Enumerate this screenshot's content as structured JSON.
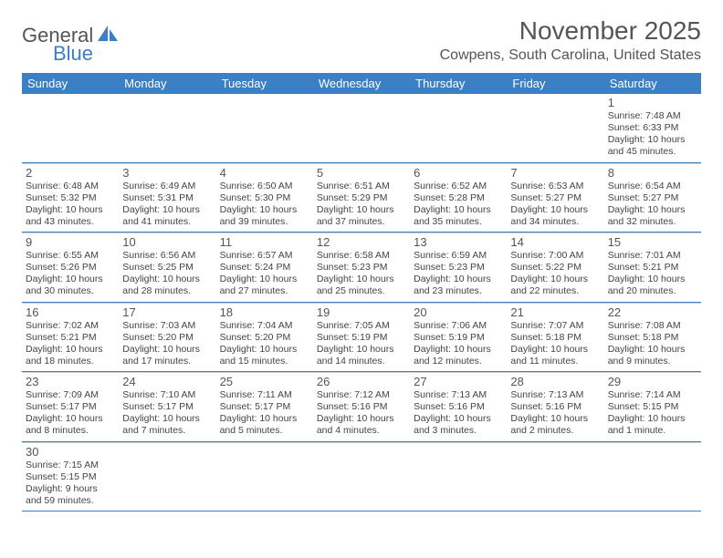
{
  "logo": {
    "text1": "General",
    "text2": "Blue",
    "color1": "#555555",
    "color2": "#3b7fc4"
  },
  "title": "November 2025",
  "location": "Cowpens, South Carolina, United States",
  "header_bg": "#3b7fc4",
  "header_text_color": "#ffffff",
  "grid_line_color": "#3b7fc4",
  "cell_divider_color": "#d0d0d0",
  "day_names": [
    "Sunday",
    "Monday",
    "Tuesday",
    "Wednesday",
    "Thursday",
    "Friday",
    "Saturday"
  ],
  "weeks": [
    [
      null,
      null,
      null,
      null,
      null,
      null,
      {
        "n": "1",
        "sr": "Sunrise: 7:48 AM",
        "ss": "Sunset: 6:33 PM",
        "d1": "Daylight: 10 hours",
        "d2": "and 45 minutes."
      }
    ],
    [
      {
        "n": "2",
        "sr": "Sunrise: 6:48 AM",
        "ss": "Sunset: 5:32 PM",
        "d1": "Daylight: 10 hours",
        "d2": "and 43 minutes."
      },
      {
        "n": "3",
        "sr": "Sunrise: 6:49 AM",
        "ss": "Sunset: 5:31 PM",
        "d1": "Daylight: 10 hours",
        "d2": "and 41 minutes."
      },
      {
        "n": "4",
        "sr": "Sunrise: 6:50 AM",
        "ss": "Sunset: 5:30 PM",
        "d1": "Daylight: 10 hours",
        "d2": "and 39 minutes."
      },
      {
        "n": "5",
        "sr": "Sunrise: 6:51 AM",
        "ss": "Sunset: 5:29 PM",
        "d1": "Daylight: 10 hours",
        "d2": "and 37 minutes."
      },
      {
        "n": "6",
        "sr": "Sunrise: 6:52 AM",
        "ss": "Sunset: 5:28 PM",
        "d1": "Daylight: 10 hours",
        "d2": "and 35 minutes."
      },
      {
        "n": "7",
        "sr": "Sunrise: 6:53 AM",
        "ss": "Sunset: 5:27 PM",
        "d1": "Daylight: 10 hours",
        "d2": "and 34 minutes."
      },
      {
        "n": "8",
        "sr": "Sunrise: 6:54 AM",
        "ss": "Sunset: 5:27 PM",
        "d1": "Daylight: 10 hours",
        "d2": "and 32 minutes."
      }
    ],
    [
      {
        "n": "9",
        "sr": "Sunrise: 6:55 AM",
        "ss": "Sunset: 5:26 PM",
        "d1": "Daylight: 10 hours",
        "d2": "and 30 minutes."
      },
      {
        "n": "10",
        "sr": "Sunrise: 6:56 AM",
        "ss": "Sunset: 5:25 PM",
        "d1": "Daylight: 10 hours",
        "d2": "and 28 minutes."
      },
      {
        "n": "11",
        "sr": "Sunrise: 6:57 AM",
        "ss": "Sunset: 5:24 PM",
        "d1": "Daylight: 10 hours",
        "d2": "and 27 minutes."
      },
      {
        "n": "12",
        "sr": "Sunrise: 6:58 AM",
        "ss": "Sunset: 5:23 PM",
        "d1": "Daylight: 10 hours",
        "d2": "and 25 minutes."
      },
      {
        "n": "13",
        "sr": "Sunrise: 6:59 AM",
        "ss": "Sunset: 5:23 PM",
        "d1": "Daylight: 10 hours",
        "d2": "and 23 minutes."
      },
      {
        "n": "14",
        "sr": "Sunrise: 7:00 AM",
        "ss": "Sunset: 5:22 PM",
        "d1": "Daylight: 10 hours",
        "d2": "and 22 minutes."
      },
      {
        "n": "15",
        "sr": "Sunrise: 7:01 AM",
        "ss": "Sunset: 5:21 PM",
        "d1": "Daylight: 10 hours",
        "d2": "and 20 minutes."
      }
    ],
    [
      {
        "n": "16",
        "sr": "Sunrise: 7:02 AM",
        "ss": "Sunset: 5:21 PM",
        "d1": "Daylight: 10 hours",
        "d2": "and 18 minutes."
      },
      {
        "n": "17",
        "sr": "Sunrise: 7:03 AM",
        "ss": "Sunset: 5:20 PM",
        "d1": "Daylight: 10 hours",
        "d2": "and 17 minutes."
      },
      {
        "n": "18",
        "sr": "Sunrise: 7:04 AM",
        "ss": "Sunset: 5:20 PM",
        "d1": "Daylight: 10 hours",
        "d2": "and 15 minutes."
      },
      {
        "n": "19",
        "sr": "Sunrise: 7:05 AM",
        "ss": "Sunset: 5:19 PM",
        "d1": "Daylight: 10 hours",
        "d2": "and 14 minutes."
      },
      {
        "n": "20",
        "sr": "Sunrise: 7:06 AM",
        "ss": "Sunset: 5:19 PM",
        "d1": "Daylight: 10 hours",
        "d2": "and 12 minutes."
      },
      {
        "n": "21",
        "sr": "Sunrise: 7:07 AM",
        "ss": "Sunset: 5:18 PM",
        "d1": "Daylight: 10 hours",
        "d2": "and 11 minutes."
      },
      {
        "n": "22",
        "sr": "Sunrise: 7:08 AM",
        "ss": "Sunset: 5:18 PM",
        "d1": "Daylight: 10 hours",
        "d2": "and 9 minutes."
      }
    ],
    [
      {
        "n": "23",
        "sr": "Sunrise: 7:09 AM",
        "ss": "Sunset: 5:17 PM",
        "d1": "Daylight: 10 hours",
        "d2": "and 8 minutes."
      },
      {
        "n": "24",
        "sr": "Sunrise: 7:10 AM",
        "ss": "Sunset: 5:17 PM",
        "d1": "Daylight: 10 hours",
        "d2": "and 7 minutes."
      },
      {
        "n": "25",
        "sr": "Sunrise: 7:11 AM",
        "ss": "Sunset: 5:17 PM",
        "d1": "Daylight: 10 hours",
        "d2": "and 5 minutes."
      },
      {
        "n": "26",
        "sr": "Sunrise: 7:12 AM",
        "ss": "Sunset: 5:16 PM",
        "d1": "Daylight: 10 hours",
        "d2": "and 4 minutes."
      },
      {
        "n": "27",
        "sr": "Sunrise: 7:13 AM",
        "ss": "Sunset: 5:16 PM",
        "d1": "Daylight: 10 hours",
        "d2": "and 3 minutes."
      },
      {
        "n": "28",
        "sr": "Sunrise: 7:13 AM",
        "ss": "Sunset: 5:16 PM",
        "d1": "Daylight: 10 hours",
        "d2": "and 2 minutes."
      },
      {
        "n": "29",
        "sr": "Sunrise: 7:14 AM",
        "ss": "Sunset: 5:15 PM",
        "d1": "Daylight: 10 hours",
        "d2": "and 1 minute."
      }
    ],
    [
      {
        "n": "30",
        "sr": "Sunrise: 7:15 AM",
        "ss": "Sunset: 5:15 PM",
        "d1": "Daylight: 9 hours",
        "d2": "and 59 minutes."
      },
      null,
      null,
      null,
      null,
      null,
      null
    ]
  ]
}
